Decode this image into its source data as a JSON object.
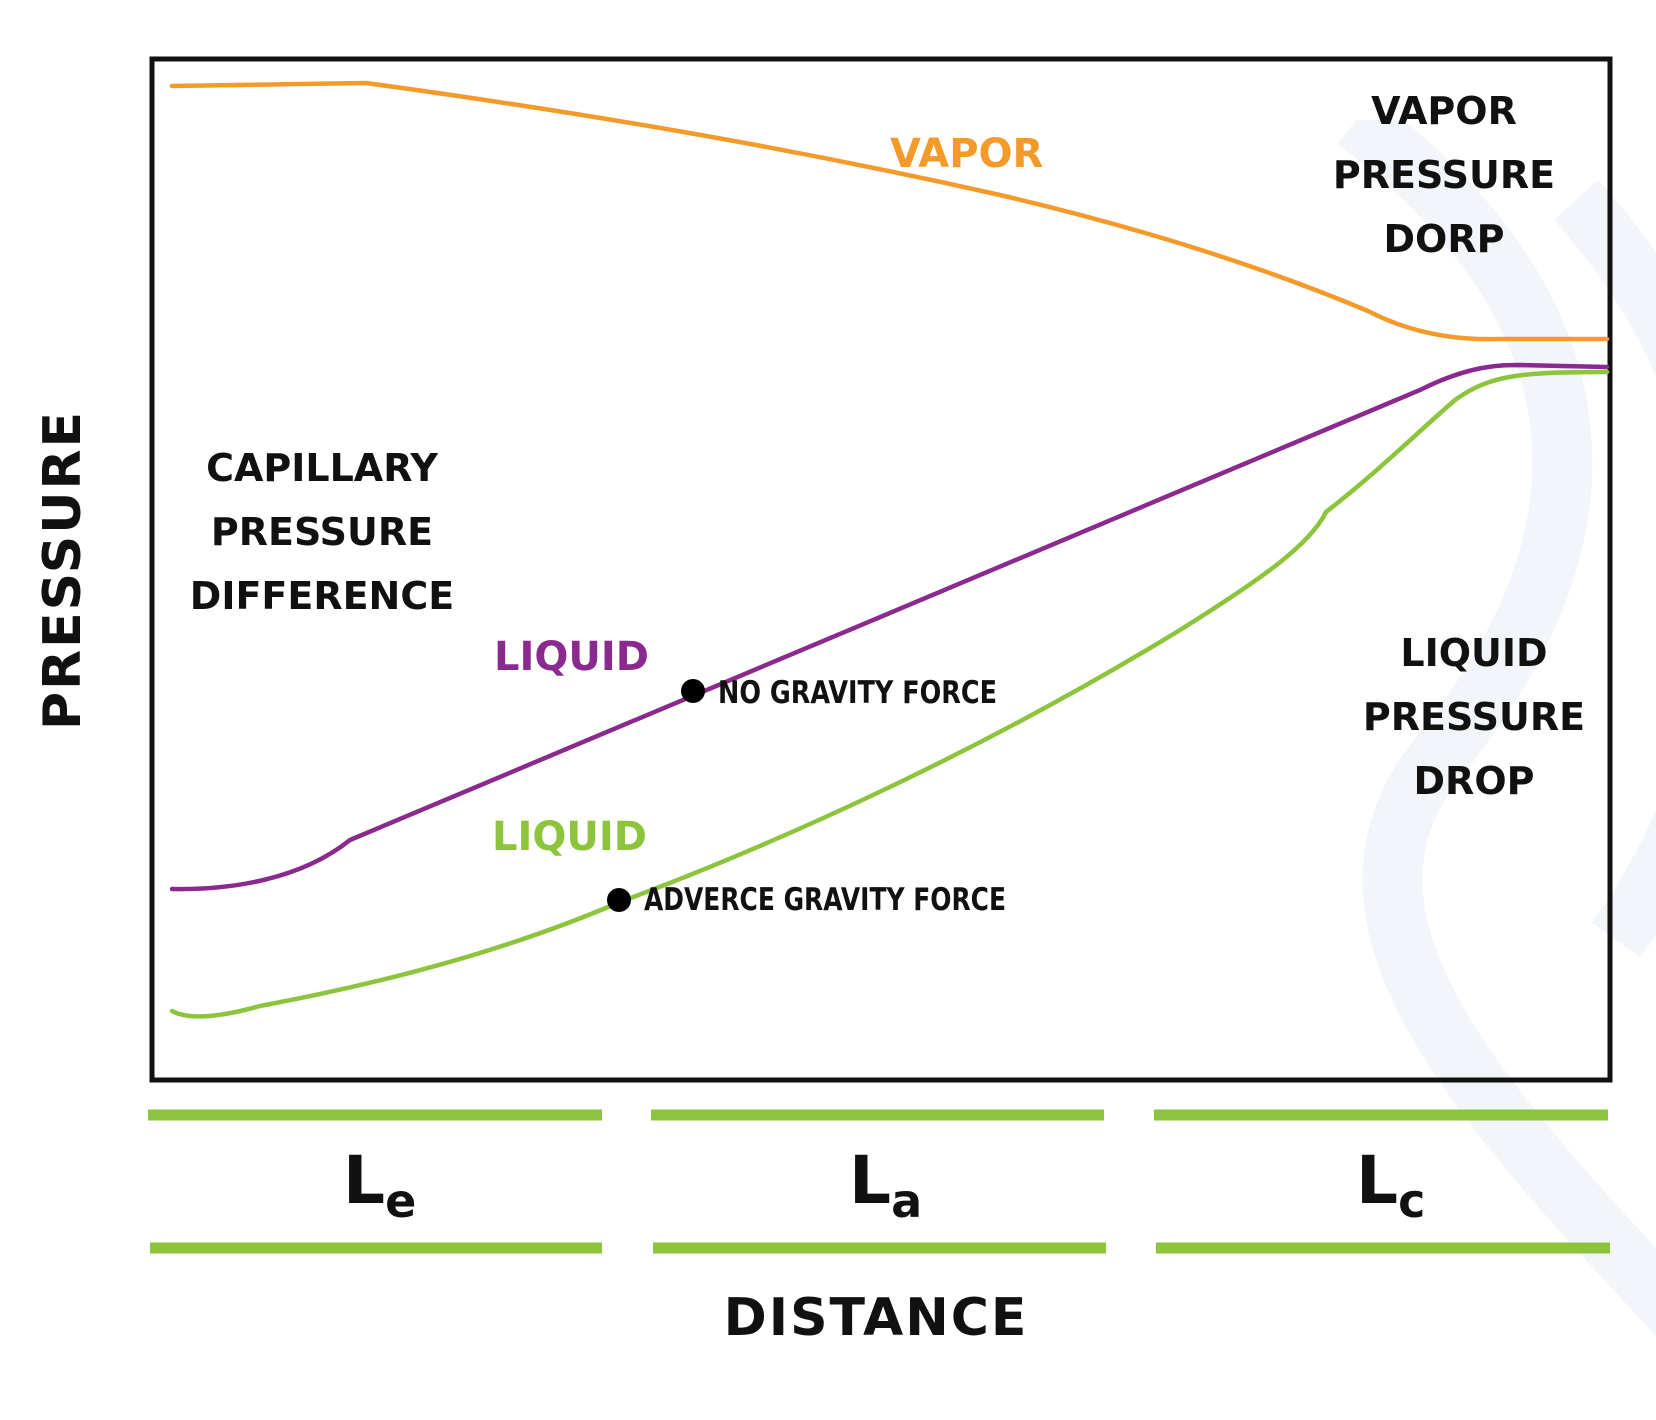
{
  "axes": {
    "y_title": "PRESSURE",
    "x_title": "DISTANCE"
  },
  "curves": {
    "vapor": {
      "label": "VAPOR",
      "color": "#f39a2a"
    },
    "liquid_no_gravity": {
      "label": "LIQUID",
      "color": "#8a2a8e"
    },
    "liquid_adverse": {
      "label": "LIQUID",
      "color": "#8cc43c"
    }
  },
  "annotations": {
    "no_gravity": "NO GRAVITY FORCE",
    "adverse_gravity": "ADVERCE GRAVITY FORCE"
  },
  "regions": {
    "capillary": [
      "CAPILLARY",
      "PRESSURE",
      "DIFFERENCE"
    ],
    "vapor_drop": [
      "VAPOR",
      "PRESSURE",
      "DORP"
    ],
    "liquid_drop": [
      "LIQUID",
      "PRESSURE",
      "DROP"
    ]
  },
  "segments": [
    {
      "main": "L",
      "sub": "e"
    },
    {
      "main": "L",
      "sub": "a"
    },
    {
      "main": "L",
      "sub": "c"
    }
  ],
  "colors": {
    "frame": "#111111",
    "segment_bar": "#8cc43c",
    "marker": "#000000"
  }
}
